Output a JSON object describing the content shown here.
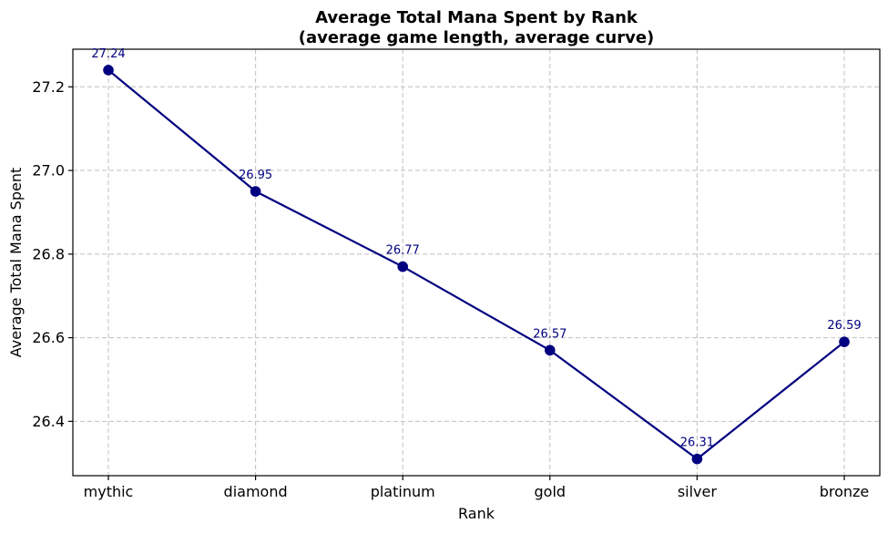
{
  "chart_data": {
    "type": "line",
    "title": "Average Total Mana Spent by Rank",
    "subtitle": "(average game length, average curve)",
    "xlabel": "Rank",
    "ylabel": "Average Total Mana Spent",
    "categories": [
      "mythic",
      "diamond",
      "platinum",
      "gold",
      "silver",
      "bronze"
    ],
    "series": [
      {
        "values": [
          27.24,
          26.95,
          26.77,
          26.57,
          26.31,
          26.59
        ],
        "data_labels": [
          "27.24",
          "26.95",
          "26.77",
          "26.57",
          "26.31",
          "26.59"
        ]
      }
    ],
    "ylim": [
      26.27,
      27.29
    ],
    "yticks": [
      26.4,
      26.6,
      26.8,
      27.0,
      27.2
    ],
    "ytick_labels": [
      "26.4",
      "26.6",
      "26.8",
      "27.0",
      "27.2"
    ],
    "grid": true,
    "marker": "circle",
    "colors": {
      "line": "#000080",
      "label": "#000080",
      "grid": "#c0c0c0"
    }
  }
}
